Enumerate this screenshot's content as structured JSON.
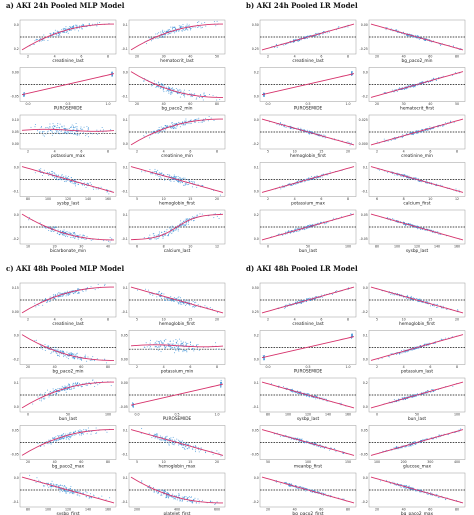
{
  "panels": [
    {
      "title": "a) AKI 24h Pooled MLP Model",
      "plots": [
        {
          "xlabel": "creatinine_last",
          "xticks": [
            "2",
            "4",
            "6",
            "8"
          ],
          "yticks": [
            "0.0",
            "0.2"
          ],
          "trend": "up",
          "shape": "curved",
          "spread": 0.05,
          "dots": "blue"
        },
        {
          "xlabel": "hematocrit_last",
          "xticks": [
            "20",
            "30",
            "40",
            "50"
          ],
          "yticks": [
            "0.1",
            "-0.1"
          ],
          "trend": "up",
          "shape": "curved",
          "spread": 0.06,
          "dots": "blue"
        },
        {
          "xlabel": "PUROSEMIDE",
          "xticks": [
            "0.0",
            "0.5",
            "1.0"
          ],
          "yticks": [
            "0.00",
            "-0.05"
          ],
          "trend": "up",
          "shape": "binary",
          "spread": 0.04,
          "dots": "blue"
        },
        {
          "xlabel": "bg_paco2_min",
          "xticks": [
            "20",
            "40",
            "60",
            "80"
          ],
          "yticks": [
            "0.0",
            "-0.1"
          ],
          "trend": "down",
          "shape": "curved",
          "spread": 0.06,
          "dots": "blue"
        },
        {
          "xlabel": "potassium_max",
          "xticks": [
            "2",
            "4",
            "6",
            "8"
          ],
          "yticks": [
            "0.10",
            "0.05",
            "0.00"
          ],
          "trend": "flat",
          "shape": "flat",
          "spread": 0.08,
          "dots": "blue"
        },
        {
          "xlabel": "creatinine_min",
          "xticks": [
            "2",
            "4",
            "6",
            "8"
          ],
          "yticks": [
            "0.1",
            "0.0"
          ],
          "trend": "up",
          "shape": "curved",
          "spread": 0.05,
          "dots": "blue"
        },
        {
          "xlabel": "sysbp_last",
          "xticks": [
            "80",
            "100",
            "120",
            "140",
            "160"
          ],
          "yticks": [
            "0.0",
            "-0.1"
          ],
          "trend": "down",
          "shape": "linear",
          "spread": 0.06,
          "dots": "blue"
        },
        {
          "xlabel": "hemoglobin_first",
          "xticks": [
            "5",
            "10",
            "15",
            "20"
          ],
          "yticks": [
            "0.1",
            "-0.1"
          ],
          "trend": "down",
          "shape": "linear",
          "spread": 0.06,
          "dots": "blue"
        },
        {
          "xlabel": "bicarbonate_min",
          "xticks": [
            "10",
            "20",
            "30",
            "40"
          ],
          "yticks": [
            "0.0",
            "-0.2"
          ],
          "trend": "down",
          "shape": "curved",
          "spread": 0.05,
          "dots": "blue"
        },
        {
          "xlabel": "calcium_last",
          "xticks": [
            "6",
            "8",
            "10",
            "12"
          ],
          "yticks": [
            "0.1",
            "-0.1"
          ],
          "trend": "up",
          "shape": "sigmoid",
          "spread": 0.06,
          "dots": "blue"
        }
      ]
    },
    {
      "title": "b) AKI 24h Pooled LR Model",
      "plots": [
        {
          "xlabel": "creatinine_last",
          "xticks": [
            "2",
            "4",
            "6",
            "8"
          ],
          "yticks": [
            "0.50",
            "0.25"
          ],
          "trend": "up",
          "shape": "linear",
          "spread": 0.02,
          "dots": "blue"
        },
        {
          "xlabel": "bg_paco2_min",
          "xticks": [
            "20",
            "40",
            "60",
            "80"
          ],
          "yticks": [
            "0.00",
            "-0.25"
          ],
          "trend": "down",
          "shape": "linear",
          "spread": 0.02,
          "dots": "blue"
        },
        {
          "xlabel": "PUROSEMIDE",
          "xticks": [
            "0.0",
            "0.5",
            "1.0"
          ],
          "yticks": [
            "0.2",
            "0.0"
          ],
          "trend": "up",
          "shape": "binary",
          "spread": 0.02,
          "dots": "blue"
        },
        {
          "xlabel": "hematocrit_first",
          "xticks": [
            "20",
            "30",
            "40",
            "50"
          ],
          "yticks": [
            "0.0",
            "-0.2"
          ],
          "trend": "up",
          "shape": "linear",
          "spread": 0.02,
          "dots": "blue"
        },
        {
          "xlabel": "hemoglobin_first",
          "xticks": [
            "5",
            "10",
            "15",
            "20"
          ],
          "yticks": [
            "0.0",
            "-0.2"
          ],
          "trend": "down",
          "shape": "linear",
          "spread": 0.02,
          "dots": "blue"
        },
        {
          "xlabel": "creatinine_min",
          "xticks": [
            "2",
            "4",
            "6",
            "8"
          ],
          "yticks": [
            "0.025",
            "0.000"
          ],
          "trend": "up",
          "shape": "linear",
          "spread": 0.02,
          "dots": "blue"
        },
        {
          "xlabel": "potassium_max",
          "xticks": [
            "2",
            "4",
            "6",
            "8"
          ],
          "yticks": [
            "0.1",
            "0.0"
          ],
          "trend": "up",
          "shape": "linear",
          "spread": 0.02,
          "dots": "blue"
        },
        {
          "xlabel": "calcium_first",
          "xticks": [
            "6",
            "8",
            "10",
            "12"
          ],
          "yticks": [
            "0.1",
            "-0.1"
          ],
          "trend": "down",
          "shape": "linear",
          "spread": 0.02,
          "dots": "blue"
        },
        {
          "xlabel": "bun_last",
          "xticks": [
            "0",
            "50",
            "100"
          ],
          "yticks": [
            "0.2",
            "0.0"
          ],
          "trend": "up",
          "shape": "linear",
          "spread": 0.02,
          "dots": "blue"
        },
        {
          "xlabel": "sysbp_last",
          "xticks": [
            "80",
            "100",
            "120",
            "140",
            "160"
          ],
          "yticks": [
            "0.05",
            "-0.05"
          ],
          "trend": "down",
          "shape": "linear",
          "spread": 0.02,
          "dots": "blue"
        }
      ]
    },
    {
      "title": "c) AKI 48h Pooled MLP Model",
      "plots": [
        {
          "xlabel": "creatinine_last",
          "xticks": [
            "2",
            "4",
            "6",
            "8"
          ],
          "yticks": [
            "0.15",
            "0.00"
          ],
          "trend": "up",
          "shape": "curved",
          "spread": 0.05,
          "dots": "blue"
        },
        {
          "xlabel": "hemoglobin_first",
          "xticks": [
            "5",
            "10",
            "15",
            "20"
          ],
          "yticks": [
            "0.1",
            "-0.1"
          ],
          "trend": "down",
          "shape": "linear",
          "spread": 0.06,
          "dots": "blue"
        },
        {
          "xlabel": "bg_paco2_min",
          "xticks": [
            "20",
            "40",
            "60",
            "80"
          ],
          "yticks": [
            "0.0",
            "-0.2"
          ],
          "trend": "down",
          "shape": "curved",
          "spread": 0.06,
          "dots": "blue"
        },
        {
          "xlabel": "potassium_min",
          "xticks": [
            "2",
            "4",
            "6",
            "8"
          ],
          "yticks": [
            "0.05",
            "0.00"
          ],
          "trend": "flat",
          "shape": "flat",
          "spread": 0.08,
          "dots": "blue"
        },
        {
          "xlabel": "bun_last",
          "xticks": [
            "0",
            "50",
            "100"
          ],
          "yticks": [
            "0.1",
            "0.0"
          ],
          "trend": "up",
          "shape": "curved",
          "spread": 0.06,
          "dots": "blue"
        },
        {
          "xlabel": "PUROSEMIDE",
          "xticks": [
            "0.0",
            "0.5",
            "1.0"
          ],
          "yticks": [
            "0.00",
            "-0.05"
          ],
          "trend": "up",
          "shape": "binary",
          "spread": 0.04,
          "dots": "blue"
        },
        {
          "xlabel": "bg_paco2_max",
          "xticks": [
            "20",
            "40",
            "60",
            "80"
          ],
          "yticks": [
            "0.05",
            "-0.05"
          ],
          "trend": "up",
          "shape": "curved",
          "spread": 0.06,
          "dots": "blue"
        },
        {
          "xlabel": "hemoglobin_max",
          "xticks": [
            "5",
            "10",
            "15",
            "20"
          ],
          "yticks": [
            "0.1",
            "-0.1"
          ],
          "trend": "down",
          "shape": "linear",
          "spread": 0.06,
          "dots": "blue"
        },
        {
          "xlabel": "sysbp_first",
          "xticks": [
            "80",
            "100",
            "120",
            "140",
            "160"
          ],
          "yticks": [
            "0.0",
            "-0.1"
          ],
          "trend": "down",
          "shape": "linear",
          "spread": 0.06,
          "dots": "blue"
        },
        {
          "xlabel": "platelet_first",
          "xticks": [
            "200",
            "400",
            "600"
          ],
          "yticks": [
            "0.1",
            "-0.1"
          ],
          "trend": "down",
          "shape": "curved",
          "spread": 0.06,
          "dots": "blue"
        }
      ]
    },
    {
      "title": "d) AKI 48h Pooled LR Model",
      "plots": [
        {
          "xlabel": "creatinine_last",
          "xticks": [
            "2",
            "4",
            "6",
            "8"
          ],
          "yticks": [
            "0.50",
            "0.25"
          ],
          "trend": "up",
          "shape": "linear",
          "spread": 0.02,
          "dots": "blue"
        },
        {
          "xlabel": "hemoglobin_first",
          "xticks": [
            "5",
            "10",
            "15",
            "20"
          ],
          "yticks": [
            "0.0",
            "-0.2"
          ],
          "trend": "down",
          "shape": "linear",
          "spread": 0.02,
          "dots": "blue"
        },
        {
          "xlabel": "PUROSEMIDE",
          "xticks": [
            "0.0",
            "0.5",
            "1.0"
          ],
          "yticks": [
            "0.2",
            "0.0"
          ],
          "trend": "up",
          "shape": "binary",
          "spread": 0.02,
          "dots": "blue"
        },
        {
          "xlabel": "potassium_last",
          "xticks": [
            "2",
            "4",
            "6",
            "8"
          ],
          "yticks": [
            "0.1",
            "0.0"
          ],
          "trend": "up",
          "shape": "linear",
          "spread": 0.02,
          "dots": "blue"
        },
        {
          "xlabel": "sysbp_last",
          "xticks": [
            "80",
            "100",
            "120",
            "140",
            "160"
          ],
          "yticks": [
            "0.1",
            "-0.1"
          ],
          "trend": "down",
          "shape": "linear",
          "spread": 0.02,
          "dots": "blue"
        },
        {
          "xlabel": "bun_last",
          "xticks": [
            "0",
            "50",
            "100"
          ],
          "yticks": [
            "0.2",
            "0.0"
          ],
          "trend": "up",
          "shape": "linear",
          "spread": 0.02,
          "dots": "blue"
        },
        {
          "xlabel": "meanbp_first",
          "xticks": [
            "50",
            "100",
            "150"
          ],
          "yticks": [
            "0.05",
            "-0.05"
          ],
          "trend": "down",
          "shape": "linear",
          "spread": 0.02,
          "dots": "blue"
        },
        {
          "xlabel": "glucose_max",
          "xticks": [
            "100",
            "200",
            "300",
            "400"
          ],
          "yticks": [
            "0.05",
            "-0.05"
          ],
          "trend": "up",
          "shape": "linear",
          "spread": 0.02,
          "dots": "blue"
        },
        {
          "xlabel": "bg_paco2_first",
          "xticks": [
            "20",
            "40",
            "60",
            "80"
          ],
          "yticks": [
            "0.0",
            "-0.2"
          ],
          "trend": "down",
          "shape": "linear",
          "spread": 0.02,
          "dots": "blue"
        },
        {
          "xlabel": "bg_paco2_max",
          "xticks": [
            "20",
            "40",
            "60",
            "80"
          ],
          "yticks": [
            "0.0",
            "-0.2"
          ],
          "trend": "down",
          "shape": "linear",
          "spread": 0.02,
          "dots": "blue"
        }
      ]
    }
  ],
  "colors": {
    "dots": "#3a8fd6",
    "fit": "#d6336c",
    "zero_line": "#111111",
    "frame": "#9a9a9a"
  },
  "chart_data": [
    {
      "type": "scatter",
      "title": "a) AKI 24h Pooled MLP Model",
      "layout": "5 rows x 2 columns of partial dependence scatter plots",
      "xlabels": [
        "creatinine_last",
        "hematocrit_last",
        "PUROSEMIDE",
        "bg_paco2_min",
        "potassium_max",
        "creatinine_min",
        "sysbp_last",
        "hemoglobin_first",
        "bicarbonate_min",
        "calcium_last"
      ],
      "trends": [
        "up",
        "up",
        "up",
        "down",
        "flat",
        "up",
        "down",
        "down",
        "down",
        "up"
      ],
      "overlay": "red fitted trend line with dashed black horizontal reference line"
    },
    {
      "type": "scatter",
      "title": "b) AKI 24h Pooled LR Model",
      "layout": "5 rows x 2 columns of partial dependence scatter plots",
      "xlabels": [
        "creatinine_last",
        "bg_paco2_min",
        "PUROSEMIDE",
        "hematocrit_first",
        "hemoglobin_first",
        "creatinine_min",
        "potassium_max",
        "calcium_first",
        "bun_last",
        "sysbp_last"
      ],
      "trends": [
        "up",
        "down",
        "up",
        "up",
        "down",
        "up",
        "up",
        "down",
        "up",
        "down"
      ],
      "overlay": "red fitted trend line with dashed black horizontal reference line"
    },
    {
      "type": "scatter",
      "title": "c) AKI 48h Pooled MLP Model",
      "layout": "5 rows x 2 columns of partial dependence scatter plots",
      "xlabels": [
        "creatinine_last",
        "hemoglobin_first",
        "bg_paco2_min",
        "potassium_min",
        "bun_last",
        "PUROSEMIDE",
        "bg_paco2_max",
        "hemoglobin_max",
        "sysbp_first",
        "platelet_first"
      ],
      "trends": [
        "up",
        "down",
        "down",
        "flat",
        "up",
        "up",
        "up",
        "down",
        "down",
        "down"
      ],
      "overlay": "red fitted trend line with dashed black horizontal reference line"
    },
    {
      "type": "scatter",
      "title": "d) AKI 48h Pooled LR Model",
      "layout": "5 rows x 2 columns of partial dependence scatter plots",
      "xlabels": [
        "creatinine_last",
        "hemoglobin_first",
        "PUROSEMIDE",
        "potassium_last",
        "sysbp_last",
        "bun_last",
        "meanbp_first",
        "glucose_max",
        "bg_paco2_first",
        "bg_paco2_max"
      ],
      "trends": [
        "up",
        "down",
        "up",
        "up",
        "down",
        "up",
        "down",
        "up",
        "down",
        "down"
      ],
      "overlay": "red fitted trend line with dashed black horizontal reference line"
    }
  ]
}
